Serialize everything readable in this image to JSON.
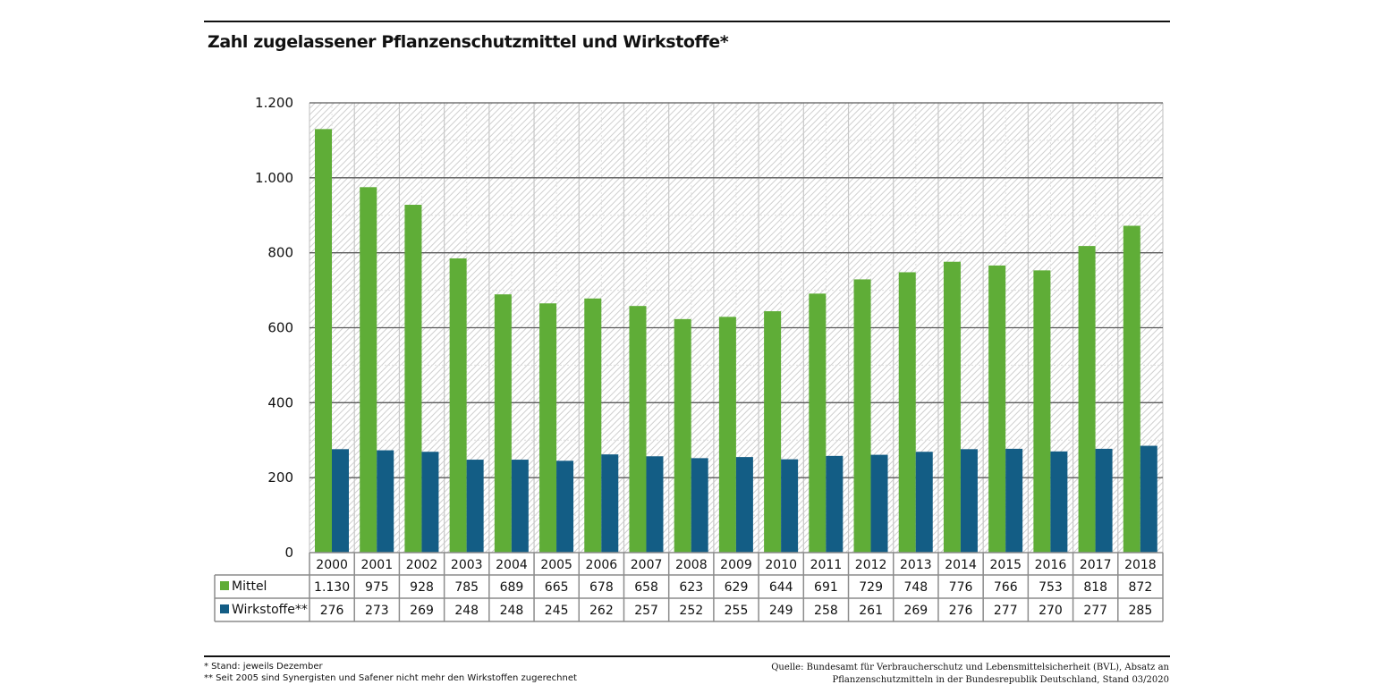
{
  "header": {
    "title": "Zahl zugelassener Pflanzenschutzmittel und Wirkstoffe*"
  },
  "chart_data": {
    "type": "bar",
    "title": "Zahl zugelassener Pflanzenschutzmittel und Wirkstoffe*",
    "xlabel": "",
    "ylabel": "",
    "ylim": [
      0,
      1200
    ],
    "yticks": [
      0,
      200,
      400,
      600,
      800,
      1000,
      1200
    ],
    "ytick_labels": [
      "0",
      "200",
      "400",
      "600",
      "800",
      "1.000",
      "1.200"
    ],
    "grid": true,
    "categories": [
      "2000",
      "2001",
      "2002",
      "2003",
      "2004",
      "2005",
      "2006",
      "2007",
      "2008",
      "2009",
      "2010",
      "2011",
      "2012",
      "2013",
      "2014",
      "2015",
      "2016",
      "2017",
      "2018"
    ],
    "series": [
      {
        "name": "Mittel",
        "color": "#5fad37",
        "values": [
          1130,
          975,
          928,
          785,
          689,
          665,
          678,
          658,
          623,
          629,
          644,
          691,
          729,
          748,
          776,
          766,
          753,
          818,
          872
        ],
        "labels": [
          "1.130",
          "975",
          "928",
          "785",
          "689",
          "665",
          "678",
          "658",
          "623",
          "629",
          "644",
          "691",
          "729",
          "748",
          "776",
          "766",
          "753",
          "818",
          "872"
        ]
      },
      {
        "name": "Wirkstoffe**",
        "color": "#135d85",
        "values": [
          276,
          273,
          269,
          248,
          248,
          245,
          262,
          257,
          252,
          255,
          249,
          258,
          261,
          269,
          276,
          277,
          270,
          277,
          285
        ],
        "labels": [
          "276",
          "273",
          "269",
          "248",
          "248",
          "245",
          "262",
          "257",
          "252",
          "255",
          "249",
          "258",
          "261",
          "269",
          "276",
          "277",
          "270",
          "277",
          "285"
        ]
      }
    ],
    "legend": "data-table-below"
  },
  "footnotes": {
    "note1": "* Stand: jeweils Dezember",
    "note2": "** Seit 2005 sind Synergisten und Safener nicht mehr den Wirkstoffen zugerechnet"
  },
  "source": {
    "line1": "Quelle: Bundesamt für Verbraucherschutz und Lebensmittelsicherheit (BVL), Absatz an",
    "line2": "Pflanzenschutzmitteln in der Bundesrepublik Deutschland, Stand 03/2020"
  }
}
